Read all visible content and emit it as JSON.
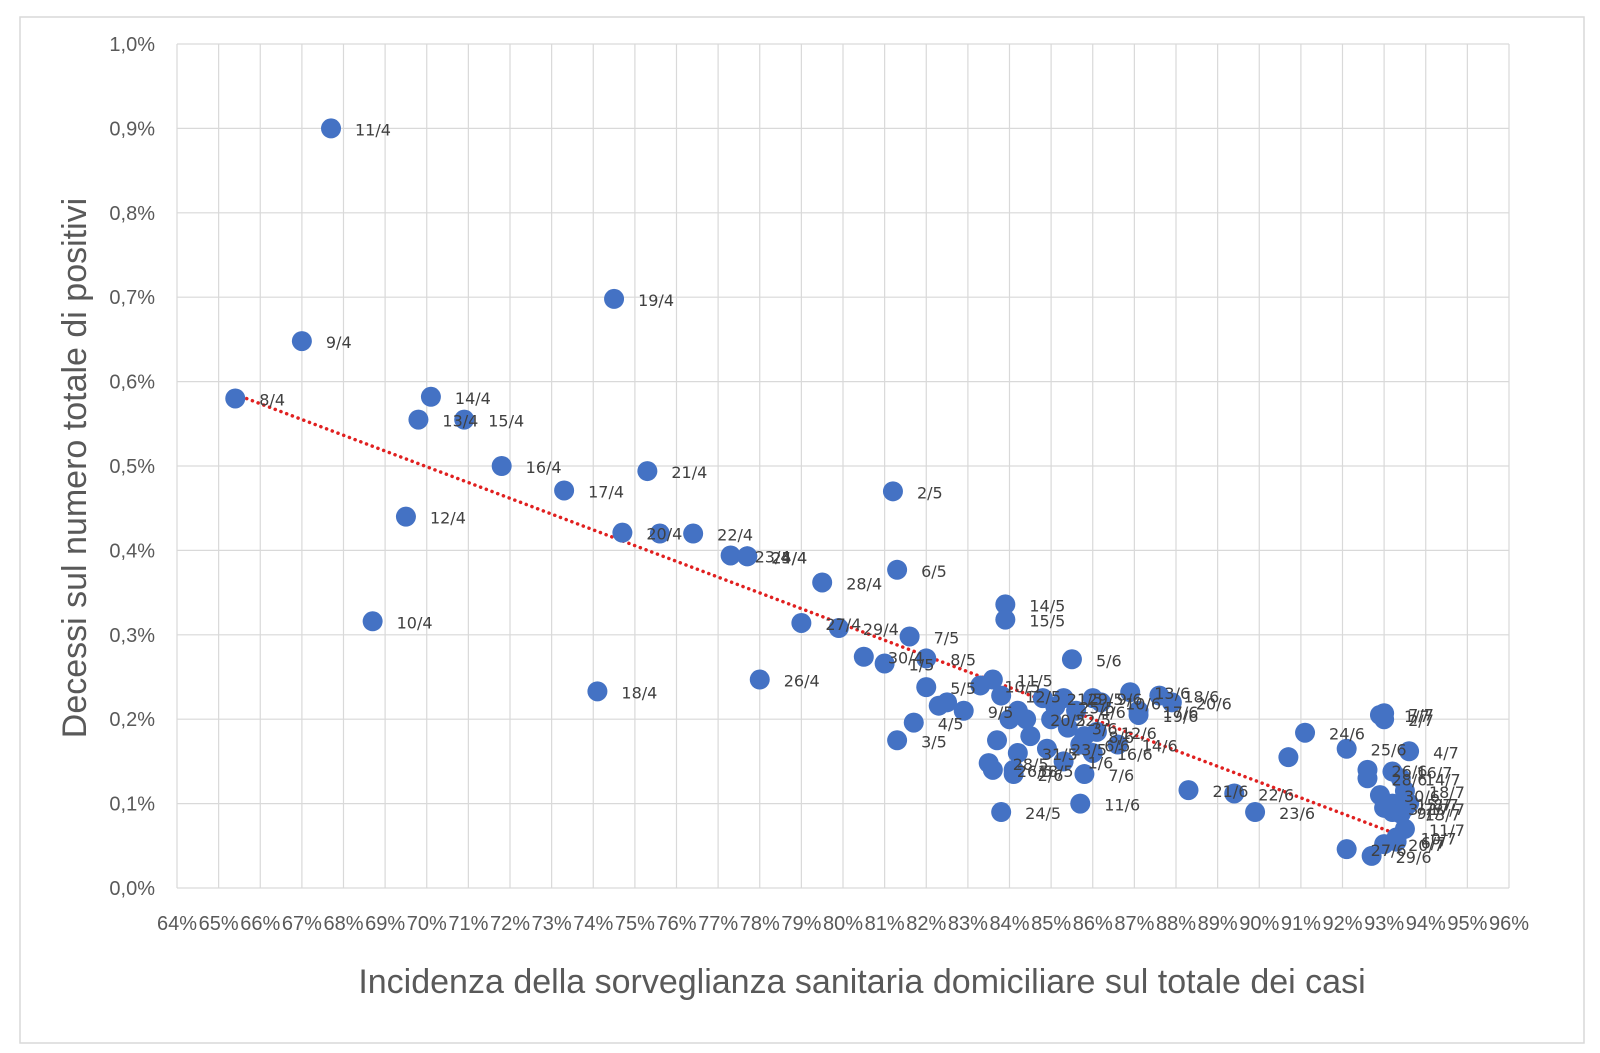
{
  "chart_data": {
    "type": "scatter",
    "xlabel": "Incidenza della sorveglianza sanitaria domiciliare sul totale dei casi",
    "ylabel": "Decessi sul numero totale di positivi",
    "xlim": [
      64,
      96
    ],
    "ylim": [
      0,
      1.0
    ],
    "x_ticks": [
      "64%",
      "65%",
      "66%",
      "67%",
      "68%",
      "69%",
      "70%",
      "71%",
      "72%",
      "73%",
      "74%",
      "75%",
      "76%",
      "77%",
      "78%",
      "79%",
      "80%",
      "81%",
      "82%",
      "83%",
      "84%",
      "85%",
      "86%",
      "87%",
      "88%",
      "89%",
      "90%",
      "91%",
      "92%",
      "93%",
      "94%",
      "95%",
      "96%"
    ],
    "y_ticks": [
      "0,0%",
      "0,1%",
      "0,2%",
      "0,3%",
      "0,4%",
      "0,5%",
      "0,6%",
      "0,7%",
      "0,8%",
      "0,9%",
      "1,0%"
    ],
    "grid": true,
    "marker_color": "#4472C4",
    "trendline": {
      "color": "#E02020",
      "style": "dotted",
      "from": [
        65.4,
        0.585
      ],
      "to": [
        93.4,
        0.062
      ]
    },
    "points": [
      {
        "label": "8/4",
        "x": 65.4,
        "y": 0.58
      },
      {
        "label": "9/4",
        "x": 67.0,
        "y": 0.648
      },
      {
        "label": "11/4",
        "x": 67.7,
        "y": 0.9
      },
      {
        "label": "10/4",
        "x": 68.7,
        "y": 0.316
      },
      {
        "label": "12/4",
        "x": 69.5,
        "y": 0.44
      },
      {
        "label": "13/4",
        "x": 69.8,
        "y": 0.555
      },
      {
        "label": "14/4",
        "x": 70.1,
        "y": 0.582
      },
      {
        "label": "15/4",
        "x": 70.9,
        "y": 0.555
      },
      {
        "label": "16/4",
        "x": 71.8,
        "y": 0.5
      },
      {
        "label": "17/4",
        "x": 73.3,
        "y": 0.471
      },
      {
        "label": "18/4",
        "x": 74.1,
        "y": 0.233
      },
      {
        "label": "19/4",
        "x": 74.5,
        "y": 0.698
      },
      {
        "label": "20/4",
        "x": 74.7,
        "y": 0.421
      },
      {
        "label": "21/4",
        "x": 75.3,
        "y": 0.494
      },
      {
        "label": "",
        "x": 75.6,
        "y": 0.42
      },
      {
        "label": "22/4",
        "x": 76.4,
        "y": 0.42
      },
      {
        "label": "23/4",
        "x": 77.3,
        "y": 0.394
      },
      {
        "label": "24/4",
        "x": 77.7,
        "y": 0.393
      },
      {
        "label": "25/4",
        "x": 77.7,
        "y": 0.393
      },
      {
        "label": "26/4",
        "x": 78.0,
        "y": 0.247
      },
      {
        "label": "27/4",
        "x": 79.0,
        "y": 0.314
      },
      {
        "label": "28/4",
        "x": 79.5,
        "y": 0.362
      },
      {
        "label": "29/4",
        "x": 79.9,
        "y": 0.308
      },
      {
        "label": "30/4",
        "x": 80.5,
        "y": 0.274
      },
      {
        "label": "1/5",
        "x": 81.0,
        "y": 0.266
      },
      {
        "label": "2/5",
        "x": 81.2,
        "y": 0.47
      },
      {
        "label": "3/5",
        "x": 81.3,
        "y": 0.175
      },
      {
        "label": "6/5",
        "x": 81.3,
        "y": 0.377
      },
      {
        "label": "7/5",
        "x": 81.6,
        "y": 0.298
      },
      {
        "label": "4/5",
        "x": 81.7,
        "y": 0.196
      },
      {
        "label": "8/5",
        "x": 82.0,
        "y": 0.272
      },
      {
        "label": "5/5",
        "x": 82.0,
        "y": 0.238
      },
      {
        "label": "",
        "x": 82.3,
        "y": 0.216
      },
      {
        "label": "",
        "x": 82.5,
        "y": 0.22
      },
      {
        "label": "9/5",
        "x": 82.9,
        "y": 0.21
      },
      {
        "label": "10/5",
        "x": 83.3,
        "y": 0.24
      },
      {
        "label": "11/5",
        "x": 83.6,
        "y": 0.247
      },
      {
        "label": "12/5",
        "x": 83.8,
        "y": 0.228
      },
      {
        "label": "28/5",
        "x": 83.5,
        "y": 0.148
      },
      {
        "label": "26/5",
        "x": 83.6,
        "y": 0.14
      },
      {
        "label": "",
        "x": 83.7,
        "y": 0.175
      },
      {
        "label": "24/5",
        "x": 83.8,
        "y": 0.09
      },
      {
        "label": "14/5",
        "x": 83.9,
        "y": 0.336
      },
      {
        "label": "15/5",
        "x": 83.9,
        "y": 0.318
      },
      {
        "label": "18/5",
        "x": 84.1,
        "y": 0.14
      },
      {
        "label": "",
        "x": 84.0,
        "y": 0.2
      },
      {
        "label": "",
        "x": 84.2,
        "y": 0.21
      },
      {
        "label": "20/5",
        "x": 84.4,
        "y": 0.2
      },
      {
        "label": "31/5",
        "x": 84.2,
        "y": 0.16
      },
      {
        "label": "",
        "x": 84.5,
        "y": 0.18
      },
      {
        "label": "21/5",
        "x": 84.8,
        "y": 0.225
      },
      {
        "label": "22/5",
        "x": 85.0,
        "y": 0.2
      },
      {
        "label": "23/5",
        "x": 84.9,
        "y": 0.165
      },
      {
        "label": "25/5",
        "x": 85.1,
        "y": 0.215
      },
      {
        "label": "29/5",
        "x": 85.3,
        "y": 0.225
      },
      {
        "label": "3/6",
        "x": 85.4,
        "y": 0.19
      },
      {
        "label": "1/6",
        "x": 85.3,
        "y": 0.15
      },
      {
        "label": "2/6",
        "x": 84.1,
        "y": 0.135
      },
      {
        "label": "5/6",
        "x": 85.5,
        "y": 0.271
      },
      {
        "label": "4/6",
        "x": 85.6,
        "y": 0.21
      },
      {
        "label": "6/6",
        "x": 85.7,
        "y": 0.17
      },
      {
        "label": "7/6",
        "x": 85.8,
        "y": 0.135
      },
      {
        "label": "8/6",
        "x": 85.8,
        "y": 0.18
      },
      {
        "label": "9/6",
        "x": 86.0,
        "y": 0.225
      },
      {
        "label": "10/6",
        "x": 86.2,
        "y": 0.22
      },
      {
        "label": "11/6",
        "x": 85.7,
        "y": 0.1
      },
      {
        "label": "12/6",
        "x": 86.1,
        "y": 0.185
      },
      {
        "label": "13/6",
        "x": 86.9,
        "y": 0.232
      },
      {
        "label": "14/6",
        "x": 86.6,
        "y": 0.17
      },
      {
        "label": "16/6",
        "x": 86.0,
        "y": 0.16
      },
      {
        "label": "17/6",
        "x": 87.1,
        "y": 0.21
      },
      {
        "label": "18/6",
        "x": 87.6,
        "y": 0.228
      },
      {
        "label": "19/6",
        "x": 87.1,
        "y": 0.205
      },
      {
        "label": "20/6",
        "x": 87.9,
        "y": 0.22
      },
      {
        "label": "21/6",
        "x": 88.3,
        "y": 0.116
      },
      {
        "label": "22/6",
        "x": 89.4,
        "y": 0.112
      },
      {
        "label": "23/6",
        "x": 89.9,
        "y": 0.09
      },
      {
        "label": "",
        "x": 90.7,
        "y": 0.155
      },
      {
        "label": "24/6",
        "x": 91.1,
        "y": 0.184
      },
      {
        "label": "25/6",
        "x": 92.1,
        "y": 0.165
      },
      {
        "label": "26/6",
        "x": 92.6,
        "y": 0.14
      },
      {
        "label": "27/6",
        "x": 92.1,
        "y": 0.046
      },
      {
        "label": "28/6",
        "x": 92.6,
        "y": 0.13
      },
      {
        "label": "29/6",
        "x": 92.7,
        "y": 0.038
      },
      {
        "label": "30/6",
        "x": 92.9,
        "y": 0.11
      },
      {
        "label": "1/7",
        "x": 92.9,
        "y": 0.205
      },
      {
        "label": "2/7",
        "x": 93.0,
        "y": 0.2
      },
      {
        "label": "3/7",
        "x": 93.0,
        "y": 0.095
      },
      {
        "label": "4/7",
        "x": 93.6,
        "y": 0.162
      },
      {
        "label": "6/7",
        "x": 93.3,
        "y": 0.055
      },
      {
        "label": "7/7",
        "x": 93.0,
        "y": 0.207
      },
      {
        "label": "8/7",
        "x": 93.6,
        "y": 0.1
      },
      {
        "label": "9/7",
        "x": 93.2,
        "y": 0.09
      },
      {
        "label": "10/7",
        "x": 93.3,
        "y": 0.06
      },
      {
        "label": "11/7",
        "x": 93.5,
        "y": 0.07
      },
      {
        "label": "13/7",
        "x": 93.4,
        "y": 0.088
      },
      {
        "label": "14/7",
        "x": 93.4,
        "y": 0.13
      },
      {
        "label": "15/7",
        "x": 93.2,
        "y": 0.1
      },
      {
        "label": "16/7",
        "x": 93.2,
        "y": 0.138
      },
      {
        "label": "17/7",
        "x": 93.5,
        "y": 0.095
      },
      {
        "label": "18/7",
        "x": 93.5,
        "y": 0.115
      },
      {
        "label": "20/7",
        "x": 93.0,
        "y": 0.052
      }
    ]
  }
}
